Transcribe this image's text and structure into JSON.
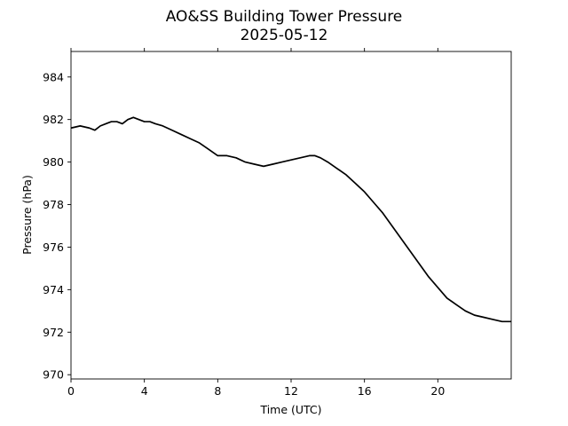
{
  "chart_data": {
    "type": "line",
    "title": "AO&SS Building Tower Pressure",
    "subtitle": "2025-05-12",
    "xlabel": "Time (UTC)",
    "ylabel": "Pressure (hPa)",
    "xlim": [
      0,
      24
    ],
    "ylim": [
      969.8,
      985.2
    ],
    "x_ticks": [
      0,
      4,
      8,
      12,
      16,
      20
    ],
    "y_ticks": [
      970,
      972,
      974,
      976,
      978,
      980,
      982,
      984
    ],
    "grid": false,
    "legend": "none",
    "line_color": "#000000",
    "series": [
      {
        "x": [
          0,
          0.5,
          1.0,
          1.3,
          1.6,
          1.9,
          2.2,
          2.5,
          2.8,
          3.1,
          3.4,
          3.7,
          4.0,
          4.3,
          4.6,
          5.0,
          5.5,
          6.0,
          6.5,
          7.0,
          7.5,
          8.0,
          8.5,
          9.0,
          9.5,
          10.0,
          10.5,
          11.0,
          11.5,
          12.0,
          12.5,
          13.0,
          13.3,
          13.6,
          14.0,
          14.5,
          15.0,
          15.5,
          16.0,
          16.5,
          17.0,
          17.5,
          18.0,
          18.5,
          19.0,
          19.5,
          20.0,
          20.5,
          21.0,
          21.5,
          22.0,
          22.5,
          23.0,
          23.5,
          24.0
        ],
        "y": [
          981.6,
          981.7,
          981.6,
          981.5,
          981.7,
          981.8,
          981.9,
          981.9,
          981.8,
          982.0,
          982.1,
          982.0,
          981.9,
          981.9,
          981.8,
          981.7,
          981.5,
          981.3,
          981.1,
          980.9,
          980.6,
          980.3,
          980.3,
          980.2,
          980.0,
          979.9,
          979.8,
          979.9,
          980.0,
          980.1,
          980.2,
          980.3,
          980.3,
          980.2,
          980.0,
          979.7,
          979.4,
          979.0,
          978.6,
          978.1,
          977.6,
          977.0,
          976.4,
          975.8,
          975.2,
          974.6,
          974.1,
          973.6,
          973.3,
          973.0,
          972.8,
          972.7,
          972.6,
          972.5,
          972.5
        ]
      }
    ]
  }
}
